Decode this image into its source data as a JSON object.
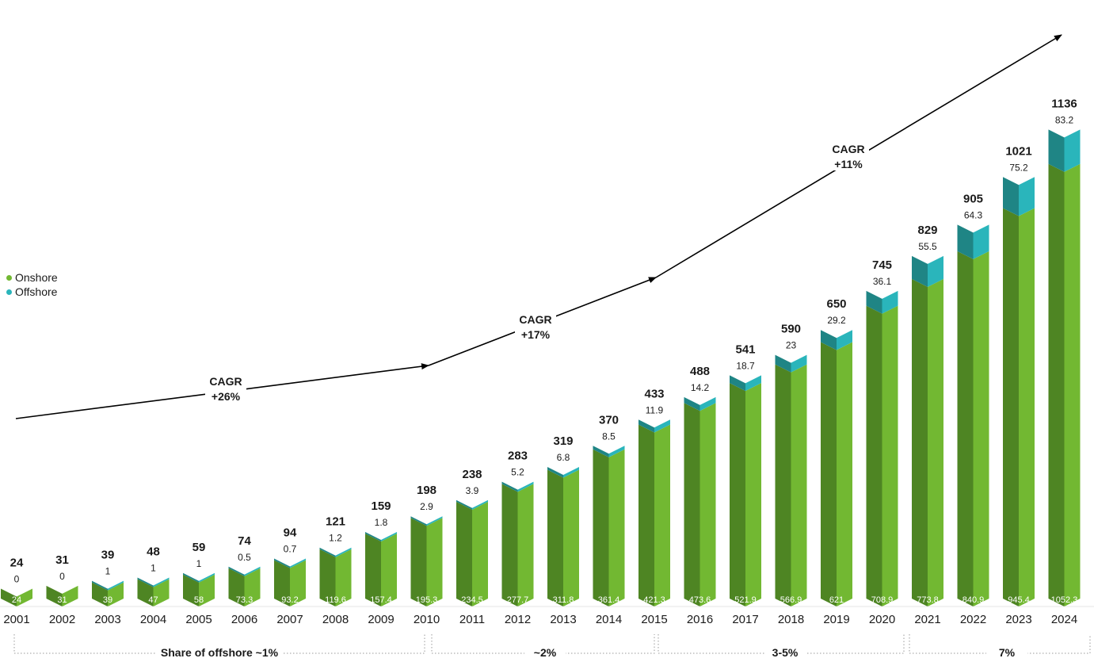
{
  "chart_data": {
    "type": "bar",
    "stacked": true,
    "categories": [
      "2001",
      "2002",
      "2003",
      "2004",
      "2005",
      "2006",
      "2007",
      "2008",
      "2009",
      "2010",
      "2011",
      "2012",
      "2013",
      "2014",
      "2015",
      "2016",
      "2017",
      "2018",
      "2019",
      "2020",
      "2021",
      "2022",
      "2023",
      "2024"
    ],
    "series": [
      {
        "name": "Onshore",
        "labels": [
          "24",
          "31",
          "39",
          "47",
          "58",
          "73.3",
          "93.2",
          "119.6",
          "157.4",
          "195.3",
          "234.5",
          "277.7",
          "311.8",
          "361.4",
          "421.3",
          "473.6",
          "521.9",
          "566.9",
          "621",
          "708.9",
          "773.8",
          "840.9",
          "945.4",
          "1052.3"
        ]
      },
      {
        "name": "Offshore",
        "labels": [
          "0",
          "0",
          "1",
          "1",
          "1",
          "0.5",
          "0.7",
          "1.2",
          "1.8",
          "2.9",
          "3.9",
          "5.2",
          "6.8",
          "8.5",
          "11.9",
          "14.2",
          "18.7",
          "23",
          "29.2",
          "36.1",
          "55.5",
          "64.3",
          "75.2",
          "83.2"
        ]
      }
    ],
    "totals": [
      "24",
      "31",
      "39",
      "48",
      "59",
      "74",
      "94",
      "121",
      "159",
      "198",
      "238",
      "283",
      "319",
      "370",
      "433",
      "488",
      "541",
      "590",
      "650",
      "745",
      "829",
      "905",
      "1021",
      "1136"
    ],
    "ylim": [
      0,
      1200
    ],
    "grid": false,
    "legend_position": "left",
    "colors": {
      "onshore_front": "#72b832",
      "onshore_side": "#4e8523",
      "offshore_front": "#2ab5bb",
      "offshore_side": "#1f8585",
      "arrow": "#000000"
    },
    "annotations": {
      "cagr": [
        {
          "line1": "CAGR",
          "line2": "+26%"
        },
        {
          "line1": "CAGR",
          "line2": "+17%"
        },
        {
          "line1": "CAGR",
          "line2": "+11%"
        }
      ],
      "share_labels": [
        "Share of offshore ~1%",
        "~2%",
        "3-5%",
        "7%"
      ]
    }
  }
}
